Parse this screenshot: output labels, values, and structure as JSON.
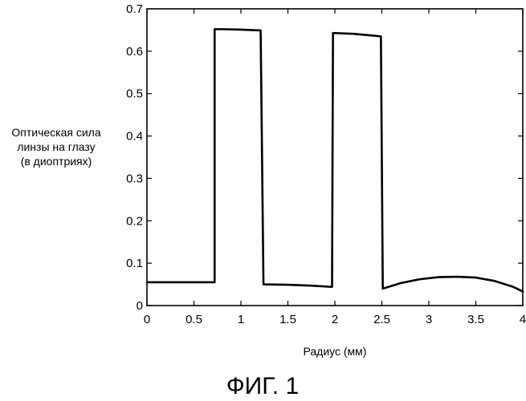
{
  "chart_data": {
    "type": "line",
    "title": "",
    "ylabel_lines": [
      "Оптическая сила",
      "линзы на глазу",
      "(в диоптриях)"
    ],
    "xlabel": "Радиус (мм)",
    "caption": "ФИГ. 1",
    "xlim": [
      0,
      4
    ],
    "ylim": [
      0,
      0.7
    ],
    "x_ticks": [
      0,
      0.5,
      1,
      1.5,
      2,
      2.5,
      3,
      3.5,
      4
    ],
    "x_tick_labels": [
      "0",
      "0.5",
      "1",
      "1.5",
      "2",
      "2.5",
      "3",
      "3.5",
      "4"
    ],
    "y_ticks": [
      0,
      0.1,
      0.2,
      0.3,
      0.4,
      0.5,
      0.6,
      0.7
    ],
    "y_tick_labels": [
      "0",
      "0.1",
      "0.2",
      "0.3",
      "0.4",
      "0.5",
      "0.6",
      "0.7"
    ],
    "grid": false,
    "line_color": "#000000",
    "series": [
      {
        "x": [
          0,
          0.72,
          0.72,
          0.8,
          1.0,
          1.21,
          1.24,
          1.5,
          1.75,
          1.97,
          1.98,
          2.2,
          2.4,
          2.49,
          2.51,
          2.7,
          2.9,
          3.1,
          3.3,
          3.5,
          3.7,
          3.9,
          4.0
        ],
        "y": [
          0.055,
          0.055,
          0.652,
          0.652,
          0.651,
          0.649,
          0.05,
          0.049,
          0.047,
          0.044,
          0.643,
          0.641,
          0.637,
          0.635,
          0.04,
          0.053,
          0.062,
          0.067,
          0.068,
          0.066,
          0.058,
          0.044,
          0.033
        ]
      }
    ]
  }
}
